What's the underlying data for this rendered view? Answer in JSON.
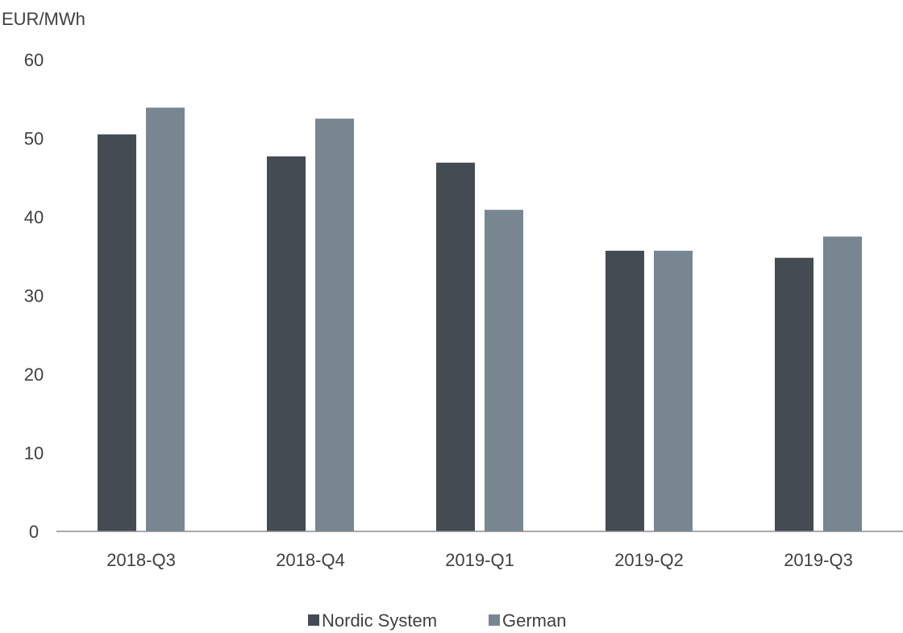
{
  "chart_data": {
    "type": "bar",
    "ylabel": "EUR/MWh",
    "ylim": [
      0,
      60
    ],
    "yticks": [
      0,
      10,
      20,
      30,
      40,
      50,
      60
    ],
    "categories": [
      "2018-Q3",
      "2018-Q4",
      "2019-Q1",
      "2019-Q2",
      "2019-Q3"
    ],
    "series": [
      {
        "name": "Nordic System",
        "color": "#444b53",
        "values": [
          50.5,
          47.7,
          46.9,
          35.7,
          34.8
        ]
      },
      {
        "name": "German",
        "color": "#788692",
        "values": [
          53.9,
          52.5,
          40.9,
          35.7,
          37.5
        ]
      }
    ],
    "grid": false,
    "legend": "bottom"
  }
}
